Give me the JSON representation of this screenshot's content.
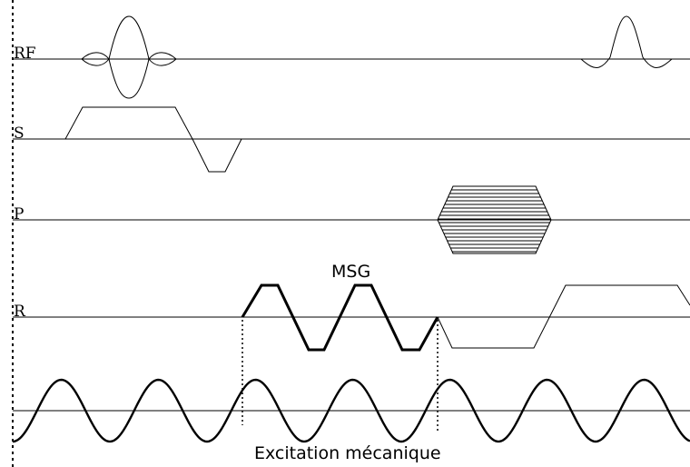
{
  "channels": {
    "rf": "RF",
    "slice": "S",
    "phase": "P",
    "readout": "R"
  },
  "annotations": {
    "msg": "MSG",
    "excitation": "Excitation mécanique"
  },
  "colors": {
    "stroke": "#000000",
    "background": "#ffffff"
  }
}
